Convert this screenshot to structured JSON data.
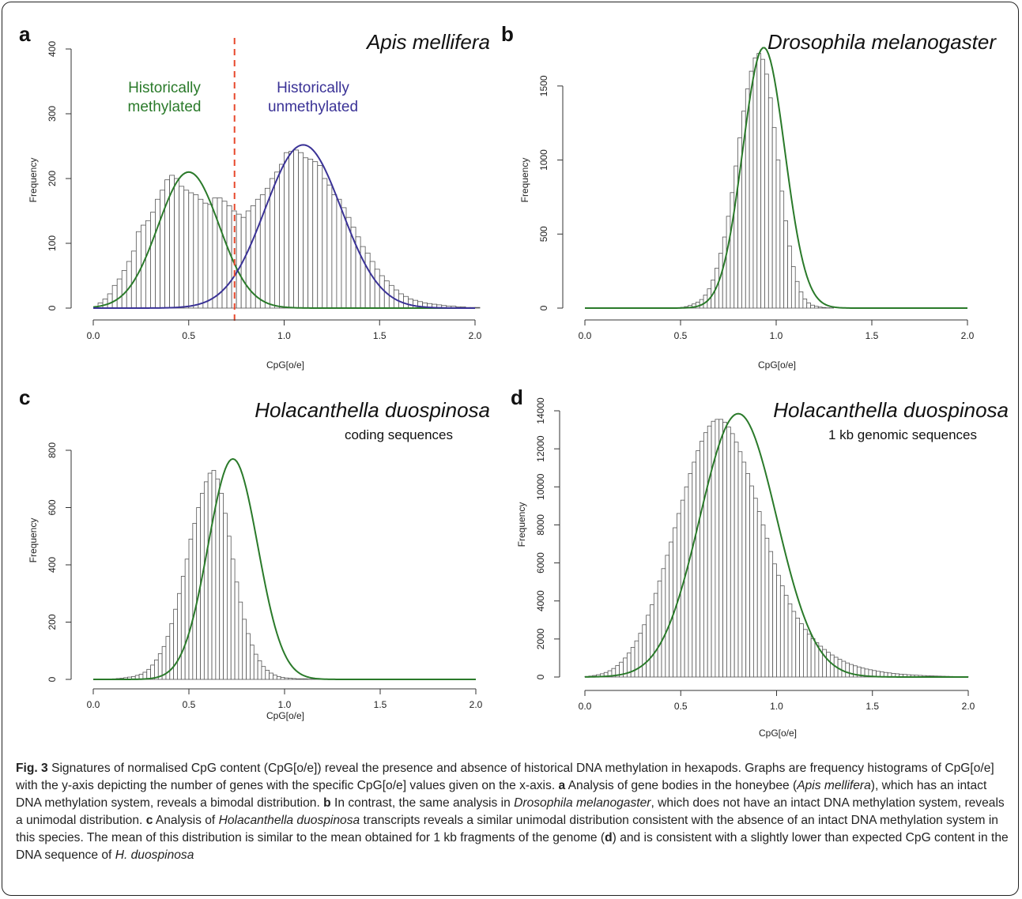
{
  "chart_data": [
    {
      "type": "bar",
      "panel": "a",
      "title": "Apis mellifera",
      "subtitle": "",
      "xlabel": "CpG[o/e]",
      "ylabel": "Frequency",
      "xlim": [
        0,
        2
      ],
      "ylim": [
        0,
        400
      ],
      "xticks": [
        "0.0",
        "0.5",
        "1.0",
        "1.5",
        "2.0"
      ],
      "yticks": [
        "0",
        "100",
        "200",
        "300",
        "400"
      ],
      "bin_start": 0.025,
      "bin_width": 0.025,
      "values": [
        8,
        14,
        22,
        35,
        45,
        58,
        72,
        88,
        118,
        128,
        135,
        148,
        168,
        182,
        198,
        205,
        200,
        188,
        182,
        178,
        175,
        168,
        162,
        160,
        170,
        170,
        165,
        158,
        150,
        145,
        140,
        150,
        158,
        168,
        175,
        185,
        200,
        210,
        222,
        240,
        242,
        244,
        240,
        232,
        230,
        226,
        220,
        200,
        190,
        175,
        168,
        155,
        140,
        125,
        110,
        95,
        85,
        72,
        60,
        50,
        42,
        35,
        28,
        22,
        18,
        14,
        12,
        10,
        8,
        7,
        6,
        5,
        4,
        3,
        3,
        2,
        2,
        1,
        1,
        1
      ],
      "series": [
        {
          "name": "Historically methylated",
          "type": "normal",
          "mean": 0.5,
          "sd": 0.16,
          "peak": 210,
          "color": "#2a7a2a"
        },
        {
          "name": "Historically unmethylated",
          "type": "normal",
          "mean": 1.1,
          "sd": 0.2,
          "peak": 252,
          "color": "#3a3296"
        }
      ],
      "annotations": [
        {
          "text": [
            "Historically",
            "methylated"
          ],
          "color": "#2a7a2a"
        },
        {
          "text": [
            "Historically",
            "unmethylated"
          ],
          "color": "#3a3296"
        }
      ],
      "threshold": {
        "x": 0.74,
        "color": "#e8482c"
      }
    },
    {
      "type": "bar",
      "panel": "b",
      "title": "Drosophila melanogaster",
      "subtitle": "",
      "xlabel": "CpG[o/e]",
      "ylabel": "Frequency",
      "xlim": [
        0,
        2
      ],
      "ylim": [
        0,
        1750
      ],
      "xticks": [
        "0.0",
        "0.5",
        "1.0",
        "1.5",
        "2.0"
      ],
      "yticks": [
        "0",
        "500",
        "1000",
        "1500"
      ],
      "bin_start": 0.5,
      "bin_width": 0.02,
      "values": [
        5,
        10,
        18,
        28,
        40,
        58,
        88,
        130,
        190,
        270,
        370,
        480,
        620,
        780,
        960,
        1150,
        1330,
        1480,
        1600,
        1690,
        1720,
        1680,
        1580,
        1420,
        1220,
        1000,
        790,
        590,
        420,
        280,
        180,
        110,
        62,
        35,
        20,
        12,
        7,
        4,
        2,
        1
      ],
      "series": [
        {
          "name": "",
          "type": "normal",
          "mean": 0.935,
          "sd": 0.11,
          "peak": 1760,
          "color": "#2a7a2a"
        }
      ],
      "annotations": [],
      "threshold": null
    },
    {
      "type": "bar",
      "panel": "c",
      "title": "Holacanthella duospinosa",
      "subtitle": "coding sequences",
      "xlabel": "CpG[o/e]",
      "ylabel": "Frequency",
      "xlim": [
        0,
        2
      ],
      "ylim": [
        0,
        800
      ],
      "xticks": [
        "0.0",
        "0.5",
        "1.0",
        "1.5",
        "2.0"
      ],
      "yticks": [
        "0",
        "200",
        "400",
        "600",
        "800"
      ],
      "bin_start": 0.1,
      "bin_width": 0.02,
      "values": [
        2,
        3,
        4,
        6,
        8,
        10,
        14,
        18,
        25,
        35,
        50,
        68,
        90,
        115,
        150,
        195,
        245,
        300,
        360,
        420,
        490,
        545,
        600,
        650,
        690,
        720,
        730,
        700,
        650,
        580,
        500,
        420,
        340,
        270,
        210,
        160,
        120,
        88,
        65,
        45,
        32,
        22,
        15,
        10,
        7,
        5,
        4,
        3,
        2,
        2,
        2,
        1,
        1,
        1,
        1,
        1,
        1
      ],
      "series": [
        {
          "name": "",
          "type": "normal",
          "mean": 0.73,
          "sd": 0.13,
          "peak": 770,
          "color": "#2a7a2a"
        }
      ],
      "annotations": [],
      "threshold": null
    },
    {
      "type": "bar",
      "panel": "d",
      "title": "Holacanthella duospinosa",
      "subtitle": "1 kb genomic sequences",
      "xlabel": "CpG[o/e]",
      "ylabel": "Frequency",
      "xlim": [
        0,
        2
      ],
      "ylim": [
        0,
        14000
      ],
      "xticks": [
        "0.0",
        "0.5",
        "1.0",
        "1.5",
        "2.0"
      ],
      "yticks": [
        "0",
        "2000",
        "4000",
        "6000",
        "8000",
        "10000",
        "12000",
        "14000"
      ],
      "bin_start": 0.0,
      "bin_width": 0.02,
      "values": [
        30,
        50,
        80,
        120,
        170,
        240,
        330,
        450,
        600,
        780,
        1000,
        1260,
        1560,
        1900,
        2300,
        2750,
        3250,
        3800,
        4400,
        5050,
        5700,
        6400,
        7100,
        7850,
        8600,
        9300,
        10000,
        10700,
        11300,
        11900,
        12400,
        12850,
        13200,
        13450,
        13550,
        13550,
        13400,
        13150,
        12800,
        12350,
        11850,
        11300,
        10700,
        10050,
        9400,
        8700,
        8000,
        7300,
        6600,
        5950,
        5350,
        4800,
        4300,
        3850,
        3450,
        3100,
        2800,
        2500,
        2250,
        2020,
        1800,
        1620,
        1450,
        1300,
        1160,
        1040,
        930,
        830,
        740,
        660,
        590,
        530,
        470,
        420,
        380,
        340,
        300,
        270,
        240,
        215,
        190,
        170,
        150,
        135,
        120,
        105,
        95,
        85,
        75,
        65,
        58,
        52,
        46,
        40,
        35,
        30,
        26,
        22,
        18,
        15
      ],
      "series": [
        {
          "name": "",
          "type": "normal",
          "mean": 0.8,
          "sd": 0.2,
          "peak": 13850,
          "color": "#2a7a2a"
        }
      ],
      "annotations": [],
      "threshold": null
    }
  ],
  "panels": {
    "a": {
      "letter": "a",
      "title": "Apis mellifera",
      "subtitle": "",
      "xlabel": "CpG[o/e]",
      "ylabel": "Frequency",
      "ann1_line1": "Historically",
      "ann1_line2": "methylated",
      "ann2_line1": "Historically",
      "ann2_line2": "unmethylated"
    },
    "b": {
      "letter": "b",
      "title": "Drosophila melanogaster",
      "subtitle": "",
      "xlabel": "CpG[o/e]",
      "ylabel": "Frequency"
    },
    "c": {
      "letter": "c",
      "title": "Holacanthella duospinosa",
      "subtitle": "coding sequences",
      "xlabel": "CpG[o/e]",
      "ylabel": "Frequency"
    },
    "d": {
      "letter": "d",
      "title": "Holacanthella duospinosa",
      "subtitle": "1 kb genomic sequences",
      "xlabel": "CpG[o/e]",
      "ylabel": "Frequency"
    }
  },
  "caption": {
    "fig_label": "Fig. 3",
    "p1": " Signatures of normalised CpG content (CpG[o/e]) reveal the presence and absence of historical DNA methylation in hexapods. Graphs are frequency histograms of CpG[o/e] with the y-axis depicting the number of genes with the specific CpG[o/e] values given on the x-axis. ",
    "a": "a",
    "p2": " Analysis of gene bodies in the honeybee (",
    "p2i": "Apis mellifera",
    "p3": "), which has an intact DNA methylation system, reveals a bimodal distribution. ",
    "b": "b",
    "p4": " In contrast, the same analysis in ",
    "p4i": "Drosophila melanogaster",
    "p5": ", which does not have an intact DNA methylation system, reveals a unimodal distribution. ",
    "c": "c",
    "p6": " Analysis of ",
    "p6i": "Holacanthella duospinosa",
    "p7": " transcripts reveals a similar unimodal distribution consistent with the absence of an intact DNA methylation system in this species. The mean of this distribution is similar to the mean obtained for 1 kb fragments of the genome (",
    "d": "d",
    "p8": ") and is consistent with a slightly lower than expected CpG content in the DNA sequence of ",
    "p8i": "H. duospinosa"
  }
}
